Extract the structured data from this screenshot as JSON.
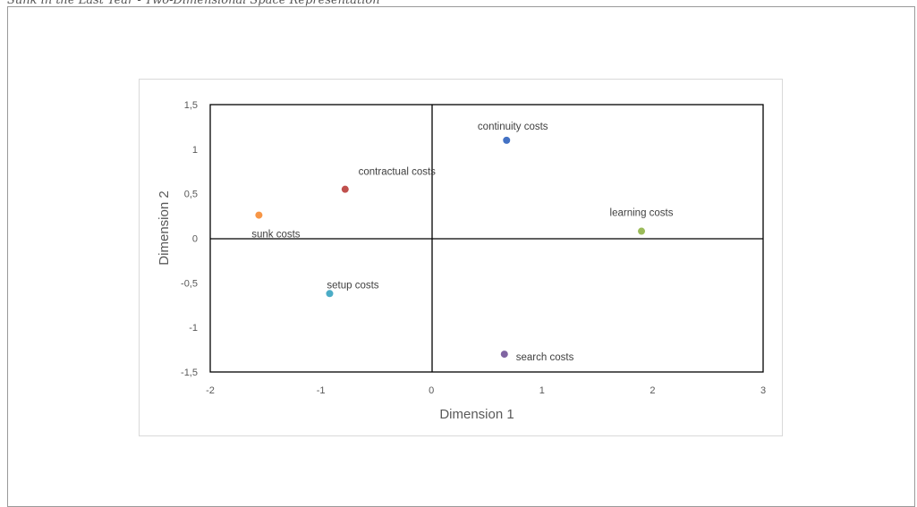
{
  "figure": {
    "caption": "Sunk in the Last Year - Two-Dimensional Space Representation"
  },
  "chart_data": {
    "type": "scatter",
    "title": "",
    "xlabel": "Dimension 1",
    "ylabel": "Dimension 2",
    "xlim": [
      -2,
      3
    ],
    "ylim": [
      -1.5,
      1.5
    ],
    "x_ticks": [
      -2,
      -1,
      0,
      1,
      2,
      3
    ],
    "x_tick_labels": [
      "-2",
      "-1",
      "0",
      "1",
      "2",
      "3"
    ],
    "y_ticks": [
      -1.5,
      -1,
      -0.5,
      0,
      0.5,
      1,
      1.5
    ],
    "y_tick_labels": [
      "-1,5",
      "-1",
      "-0,5",
      "0",
      "0,5",
      "1",
      "1,5"
    ],
    "grid": false,
    "legend": "none",
    "points": [
      {
        "label": "continuity costs",
        "x": 0.68,
        "y": 1.1,
        "color": "#4472c4"
      },
      {
        "label": "contractual costs",
        "x": -0.78,
        "y": 0.55,
        "color": "#c0504d"
      },
      {
        "label": "sunk costs",
        "x": -1.56,
        "y": 0.26,
        "color": "#f79646"
      },
      {
        "label": "learning costs",
        "x": 1.9,
        "y": 0.08,
        "color": "#9bbb59"
      },
      {
        "label": "setup costs",
        "x": -0.92,
        "y": -0.62,
        "color": "#4bacc6"
      },
      {
        "label": "search costs",
        "x": 0.66,
        "y": -1.3,
        "color": "#8064a2"
      }
    ]
  }
}
